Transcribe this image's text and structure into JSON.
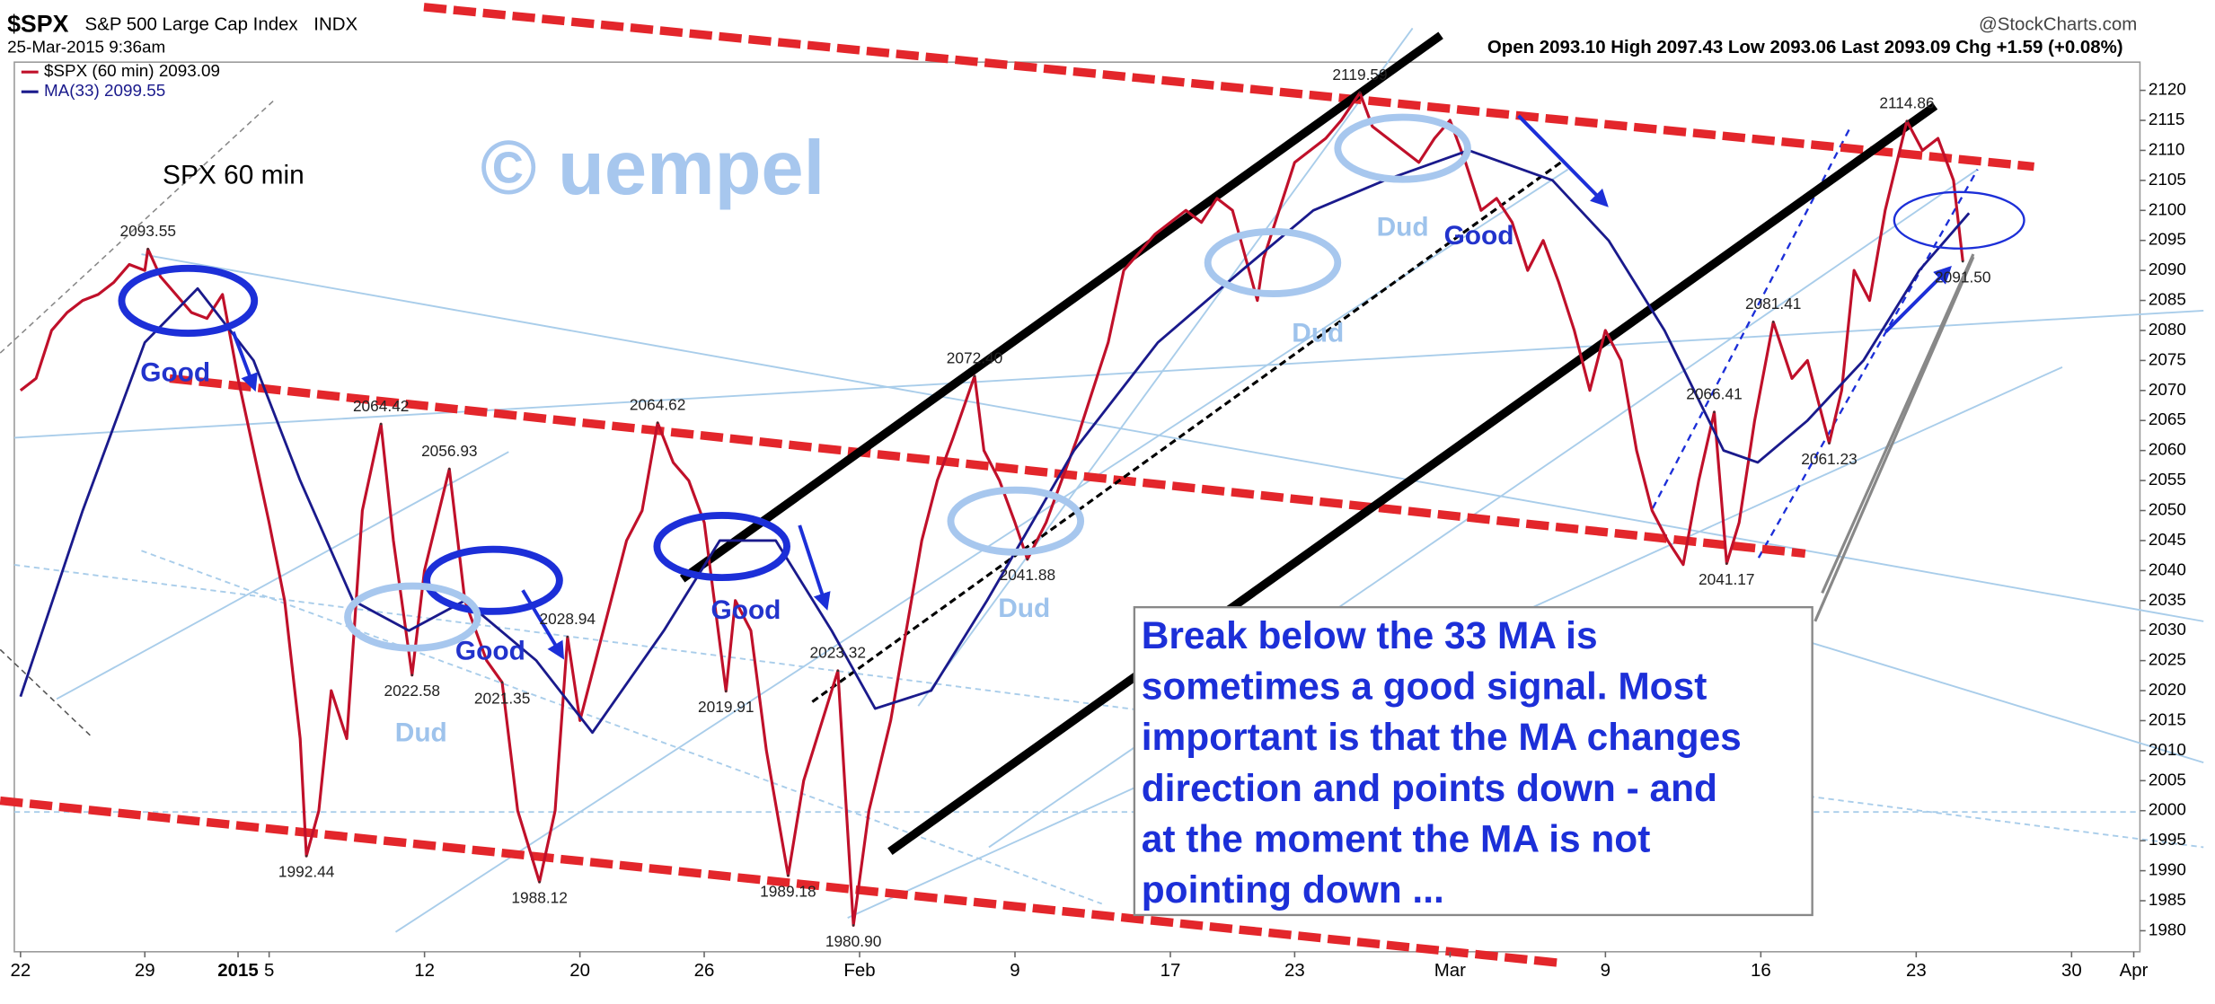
{
  "header": {
    "symbol": "$SPX",
    "name": "S&P 500 Large Cap Index",
    "exchange": "INDX",
    "date": "25-Mar-2015 9:36am",
    "source": "@StockCharts.com",
    "quote": "Open 2093.10  High 2097.43  Low 2093.06  Last 2093.09  Chg +1.59 (+0.08%)"
  },
  "chart_data": {
    "type": "line",
    "series": [
      {
        "name": "$SPX (60 min) 2093.09",
        "color": "#c0102a",
        "x": [
          0,
          0.5,
          1,
          1.5,
          2,
          2.5,
          3,
          3.5,
          4,
          4.1,
          4.5,
          5,
          5.5,
          6,
          6.5,
          7,
          7.5,
          8,
          8.5,
          9,
          9.2,
          9.6,
          10,
          10.5,
          11,
          11.6,
          12,
          12.6,
          13,
          13.8,
          14.3,
          15,
          15.5,
          16,
          16.7,
          17.2,
          17.6,
          18,
          18.5,
          19,
          19.5,
          20,
          20.5,
          21,
          21.5,
          22,
          22.7,
          23,
          23.5,
          24,
          24.7,
          25.2,
          25.8,
          26.3,
          26.8,
          27.3,
          28,
          28.5,
          29,
          29.5,
          30,
          30.7,
          31,
          31.5,
          32,
          32.4,
          33,
          33.5,
          34,
          34.5,
          35,
          35.5,
          36,
          36.5,
          37,
          37.5,
          38,
          38.5,
          39,
          39.8,
          40,
          40.5,
          41,
          41.5,
          42,
          42.5,
          43.1,
          43.5,
          44,
          44.5,
          45,
          45.5,
          46,
          46.5,
          47,
          47.5,
          48,
          48.5,
          49,
          49.5,
          50,
          50.5,
          51,
          51.5,
          52,
          52.5,
          53,
          53.5,
          54,
          54.5,
          54.9,
          55.3,
          55.8,
          56.4,
          57,
          57.5,
          58.2,
          58.6,
          59,
          59.5,
          60,
          60.7,
          61.2,
          61.7,
          62.2,
          62.5
        ],
        "values": [
          2070,
          2072,
          2080,
          2083,
          2085,
          2086,
          2088,
          2091,
          2090,
          2093.55,
          2089,
          2086,
          2083,
          2082,
          2086,
          2072,
          2060,
          2048,
          2035,
          2012,
          1992.44,
          2000,
          2020,
          2012,
          2050,
          2064.42,
          2045,
          2022.58,
          2040,
          2056.93,
          2035,
          2025,
          2021.35,
          2000,
          1988.12,
          2000,
          2028.94,
          2015,
          2025,
          2035,
          2045,
          2050,
          2064.62,
          2058,
          2055,
          2048,
          2019.91,
          2035,
          2030,
          2010,
          1989.18,
          2005,
          2015,
          2023.32,
          1980.9,
          2000,
          2015,
          2030,
          2045,
          2055,
          2062,
          2072.4,
          2060,
          2055,
          2048,
          2041.88,
          2048,
          2055,
          2062,
          2070,
          2078,
          2090,
          2093,
          2096,
          2098,
          2100,
          2098,
          2102,
          2100,
          2085,
          2092,
          2100,
          2108,
          2110,
          2112,
          2115,
          2119.59,
          2114,
          2112,
          2110,
          2108,
          2112,
          2115,
          2108,
          2100,
          2102,
          2098,
          2090,
          2095,
          2088,
          2080,
          2070,
          2080,
          2075,
          2060,
          2050,
          2045,
          2041,
          2055,
          2066.41,
          2041.17,
          2048,
          2065,
          2081.41,
          2072,
          2075,
          2061.23,
          2070,
          2090,
          2085,
          2100,
          2114.86,
          2110,
          2112,
          2105,
          2091.5
        ]
      },
      {
        "name": "MA(33) 2099.55",
        "color": "#1a1a8c",
        "x": [
          0,
          2,
          4,
          5.7,
          7.5,
          9,
          10.7,
          12.5,
          14.3,
          16.6,
          18.4,
          20.7,
          22.5,
          24.3,
          26.1,
          27.5,
          29.3,
          31.1,
          33.9,
          36.6,
          39.3,
          41.6,
          43.9,
          46.6,
          49.3,
          51.1,
          52.9,
          54.8,
          55.9,
          57.5,
          59.3,
          61.1,
          62.7
        ],
        "values": [
          2019,
          2050,
          2078,
          2087,
          2075,
          2055,
          2035,
          2030,
          2035,
          2025,
          2013,
          2030,
          2045,
          2045,
          2030,
          2017,
          2020,
          2035,
          2060,
          2078,
          2090,
          2100,
          2105,
          2110,
          2105,
          2095,
          2080,
          2060,
          2058,
          2065,
          2075,
          2090,
          2099.55
        ]
      }
    ],
    "price_labels": {
      "x": [
        4.1,
        9.2,
        11.6,
        12.6,
        13.8,
        15.5,
        16.7,
        17.6,
        20.5,
        22.7,
        24.7,
        26.3,
        26.8,
        30.7,
        32.4,
        43.1,
        54.5,
        54.9,
        56.4,
        58.2,
        60.7,
        62.5
      ],
      "values": [
        2093.55,
        1992.44,
        2064.42,
        2022.58,
        2056.93,
        2021.35,
        1988.12,
        2028.94,
        2064.62,
        2019.91,
        1989.18,
        2023.32,
        1980.9,
        2072.4,
        2041.88,
        2119.59,
        2066.41,
        2041.17,
        2081.41,
        2061.23,
        2114.86,
        2091.5
      ],
      "value_labels": [
        "2093.55",
        "1992.44",
        "2064.42",
        "2022.58",
        "2056.93",
        "2021.35",
        "1988.12",
        "2028.94",
        "2064.62",
        "2019.91",
        "1989.18",
        "2023.32",
        "1980.90",
        "2072.40",
        "2041.88",
        "2119.59",
        "2066.41",
        "2041.17",
        "2081.41",
        "2061.23",
        "2114.86",
        "2091.50"
      ]
    },
    "xlim": [
      -0.2,
      68.2
    ],
    "xticks": [
      {
        "value": 0,
        "label": "22"
      },
      {
        "value": 4,
        "label": "29"
      },
      {
        "value": 7,
        "label": "2015"
      },
      {
        "value": 8,
        "label": "5"
      },
      {
        "value": 13,
        "label": "12"
      },
      {
        "value": 18,
        "label": "20"
      },
      {
        "value": 22,
        "label": "26"
      },
      {
        "value": 27,
        "label": "Feb"
      },
      {
        "value": 32,
        "label": "9"
      },
      {
        "value": 37,
        "label": "17"
      },
      {
        "value": 41,
        "label": "23"
      },
      {
        "value": 46,
        "label": "Mar"
      },
      {
        "value": 51,
        "label": "9"
      },
      {
        "value": 56,
        "label": "16"
      },
      {
        "value": 61,
        "label": "23"
      },
      {
        "value": 66,
        "label": "30"
      },
      {
        "value": 68,
        "label": "Apr"
      }
    ],
    "ylim": [
      1976.5,
      2124.7
    ],
    "yticks": [
      1980,
      1985,
      1990,
      1995,
      2000,
      2005,
      2010,
      2015,
      2020,
      2025,
      2030,
      2035,
      2040,
      2045,
      2050,
      2055,
      2060,
      2065,
      2070,
      2075,
      2080,
      2085,
      2090,
      2095,
      2100,
      2105,
      2110,
      2115,
      2120
    ],
    "grid": false,
    "annotations": [
      "SPX 60 min",
      "© uempel",
      "Good",
      "Good",
      "Good",
      "Good",
      "Dud",
      "Dud",
      "Dud",
      "Dud"
    ],
    "note": [
      "Break below the 33 MA is",
      "sometimes a good signal. Most",
      "important is that the MA changes",
      "direction and points down - and",
      "at the moment the MA is not",
      "pointing down ..."
    ]
  }
}
